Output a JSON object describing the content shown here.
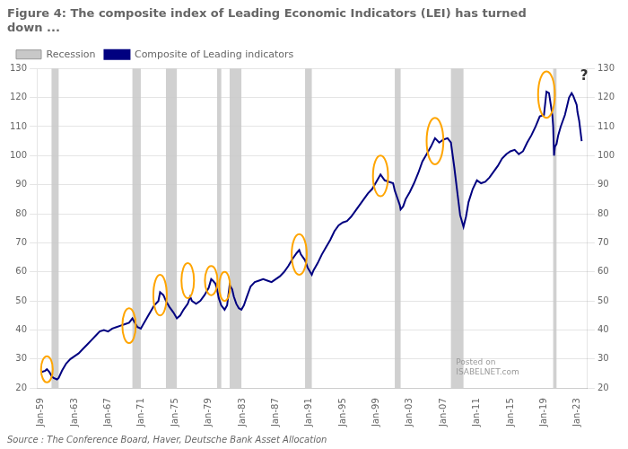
{
  "chart_data": {
    "type": "line",
    "title": "Figure 4: The composite index of Leading Economic Indicators (LEI) has turned\ndown ...",
    "source": "Source : The Conference Board, Haver, Deutsche Bank Asset Allocation",
    "x": [
      1959.0,
      1959.5,
      1959.7,
      1960.0,
      1960.3,
      1960.5,
      1960.9,
      1961.1,
      1961.5,
      1962.0,
      1962.5,
      1963.0,
      1963.5,
      1964.0,
      1964.5,
      1965.0,
      1965.5,
      1966.0,
      1966.5,
      1967.0,
      1967.5,
      1968.0,
      1968.5,
      1969.0,
      1969.5,
      1969.9,
      1970.2,
      1970.5,
      1970.9,
      1971.2,
      1971.8,
      1972.5,
      1973.0,
      1973.2,
      1973.6,
      1973.9,
      1974.3,
      1974.8,
      1975.2,
      1975.6,
      1976.0,
      1976.5,
      1976.8,
      1977.0,
      1977.5,
      1978.0,
      1978.5,
      1979.0,
      1979.3,
      1979.5,
      1979.8,
      1980.0,
      1980.2,
      1980.5,
      1980.9,
      1981.2,
      1981.5,
      1981.8,
      1982.0,
      1982.3,
      1982.6,
      1982.9,
      1983.2,
      1983.5,
      1984.0,
      1984.5,
      1985.0,
      1985.5,
      1986.0,
      1986.5,
      1987.0,
      1987.5,
      1988.0,
      1988.5,
      1989.0,
      1989.5,
      1989.8,
      1990.0,
      1990.5,
      1990.8,
      1991.3,
      1991.5,
      1992.0,
      1992.5,
      1993.0,
      1993.5,
      1994.0,
      1994.5,
      1995.0,
      1995.5,
      1996.0,
      1996.5,
      1997.0,
      1997.5,
      1998.0,
      1998.5,
      1999.0,
      1999.5,
      2000.0,
      2000.5,
      2001.0,
      2001.2,
      2001.5,
      2001.8,
      2001.9,
      2002.2,
      2002.5,
      2003.0,
      2003.5,
      2004.0,
      2004.5,
      2005.0,
      2005.5,
      2006.0,
      2006.5,
      2007.0,
      2007.5,
      2007.9,
      2008.3,
      2008.7,
      2009.0,
      2009.4,
      2009.7,
      2010.0,
      2010.5,
      2011.0,
      2011.5,
      2012.0,
      2012.5,
      2013.0,
      2013.5,
      2014.0,
      2014.5,
      2015.0,
      2015.5,
      2016.0,
      2016.5,
      2017.0,
      2017.5,
      2018.0,
      2018.5,
      2019.0,
      2019.3,
      2019.6,
      2020.0,
      2020.1,
      2020.2,
      2020.3,
      2020.5,
      2020.7,
      2021.0,
      2021.5,
      2022.0,
      2022.3,
      2022.5,
      2022.7,
      2022.9,
      2023.0,
      2023.2,
      2023.5
    ],
    "series": [
      {
        "name": "Composite of Leading indicators",
        "color": "#000080",
        "values": [
          25.5,
          26.0,
          26.5,
          25.5,
          24.0,
          23.5,
          23.0,
          23.5,
          26.0,
          28.5,
          30.0,
          31.0,
          32.0,
          33.5,
          35.0,
          36.5,
          38.0,
          39.5,
          40.0,
          39.5,
          40.5,
          41.0,
          41.5,
          42.0,
          42.5,
          44.0,
          42.5,
          41.0,
          40.5,
          42.0,
          45.0,
          48.5,
          50.0,
          53.0,
          52.0,
          50.0,
          48.0,
          46.0,
          44.0,
          45.0,
          47.0,
          49.0,
          51.5,
          50.0,
          49.0,
          50.0,
          52.0,
          54.5,
          57.5,
          57.0,
          56.0,
          54.0,
          51.0,
          48.5,
          47.0,
          48.5,
          55.5,
          54.0,
          51.5,
          49.0,
          47.5,
          47.0,
          48.5,
          51.0,
          55.0,
          56.5,
          57.0,
          57.5,
          57.0,
          56.5,
          57.5,
          58.5,
          60.0,
          62.0,
          64.5,
          66.5,
          67.5,
          66.0,
          64.0,
          61.5,
          59.0,
          60.5,
          63.0,
          66.0,
          68.5,
          71.0,
          74.0,
          76.0,
          77.0,
          77.5,
          79.0,
          81.0,
          83.0,
          85.0,
          87.0,
          88.5,
          91.0,
          93.5,
          91.5,
          91.0,
          90.5,
          88.0,
          85.5,
          83.0,
          81.5,
          82.5,
          85.0,
          87.5,
          90.5,
          94.0,
          98.0,
          100.5,
          103.0,
          106.0,
          104.5,
          105.5,
          106.0,
          104.5,
          96.0,
          86.5,
          79.5,
          75.5,
          79.0,
          84.0,
          88.5,
          91.5,
          90.5,
          91.0,
          92.5,
          94.5,
          96.5,
          99.0,
          100.5,
          101.5,
          102.0,
          100.5,
          101.5,
          104.5,
          107.0,
          110.0,
          113.5,
          114.0,
          122.0,
          121.5,
          114.0,
          110.0,
          100.0,
          103.0,
          104.0,
          107.0,
          110.0,
          114.0,
          120.0,
          121.5,
          120.5,
          119.0,
          117.5,
          115.0,
          112.0,
          105.0
        ]
      }
    ],
    "recessions": {
      "name": "Recession",
      "color": "#c8c8c8",
      "spans": [
        [
          1960.25,
          1961.1
        ],
        [
          1969.9,
          1970.9
        ],
        [
          1973.9,
          1975.2
        ],
        [
          1980.0,
          1980.5
        ],
        [
          1981.5,
          1982.9
        ],
        [
          1990.5,
          1991.3
        ],
        [
          2001.2,
          2001.9
        ],
        [
          2007.9,
          2009.4
        ],
        [
          2020.1,
          2020.5
        ]
      ]
    },
    "ellipses": {
      "color": "#FFA500",
      "items": [
        {
          "cx": 1959.7,
          "cy": 26.5,
          "rx": 0.7,
          "ry": 4.5
        },
        {
          "cx": 1969.5,
          "cy": 41.5,
          "rx": 0.8,
          "ry": 6
        },
        {
          "cx": 1973.2,
          "cy": 52.0,
          "rx": 0.8,
          "ry": 7
        },
        {
          "cx": 1976.5,
          "cy": 57.0,
          "rx": 0.75,
          "ry": 6
        },
        {
          "cx": 1979.3,
          "cy": 57.0,
          "rx": 0.75,
          "ry": 5
        },
        {
          "cx": 1980.9,
          "cy": 55.0,
          "rx": 0.65,
          "ry": 5
        },
        {
          "cx": 1989.8,
          "cy": 66.0,
          "rx": 0.9,
          "ry": 7
        },
        {
          "cx": 1999.5,
          "cy": 93.0,
          "rx": 0.9,
          "ry": 7
        },
        {
          "cx": 2006.0,
          "cy": 105.0,
          "rx": 1.0,
          "ry": 8
        },
        {
          "cx": 2019.3,
          "cy": 121.0,
          "rx": 1.0,
          "ry": 8
        }
      ]
    },
    "annotations": [
      {
        "text": "?",
        "x": 2023.8,
        "y": 126
      },
      {
        "text": "Posted on\nISABELNET.com",
        "x": 2008.5,
        "y": 24
      }
    ],
    "xlim": [
      1958.5,
      2024.2
    ],
    "xticks": [
      {
        "value": 1959,
        "label": "Jan-59"
      },
      {
        "value": 1963,
        "label": "Jan-63"
      },
      {
        "value": 1967,
        "label": "Jan-67"
      },
      {
        "value": 1971,
        "label": "Jan-71"
      },
      {
        "value": 1975,
        "label": "Jan-75"
      },
      {
        "value": 1979,
        "label": "Jan-79"
      },
      {
        "value": 1983,
        "label": "Jan-83"
      },
      {
        "value": 1987,
        "label": "Jan-87"
      },
      {
        "value": 1991,
        "label": "Jan-91"
      },
      {
        "value": 1995,
        "label": "Jan-95"
      },
      {
        "value": 1999,
        "label": "Jan-99"
      },
      {
        "value": 2003,
        "label": "Jan-03"
      },
      {
        "value": 2007,
        "label": "Jan-07"
      },
      {
        "value": 2011,
        "label": "Jan-11"
      },
      {
        "value": 2015,
        "label": "Jan-15"
      },
      {
        "value": 2019,
        "label": "Jan-19"
      },
      {
        "value": 2023,
        "label": "Jan-23"
      }
    ],
    "ylim": [
      20,
      130
    ],
    "yticks": [
      20,
      30,
      40,
      50,
      60,
      70,
      80,
      90,
      100,
      110,
      120,
      130
    ],
    "y2lim": [
      20,
      130
    ],
    "y2ticks": [
      20,
      30,
      40,
      50,
      60,
      70,
      80,
      90,
      100,
      110,
      120,
      130
    ],
    "grid": true,
    "legend": "upper left"
  }
}
